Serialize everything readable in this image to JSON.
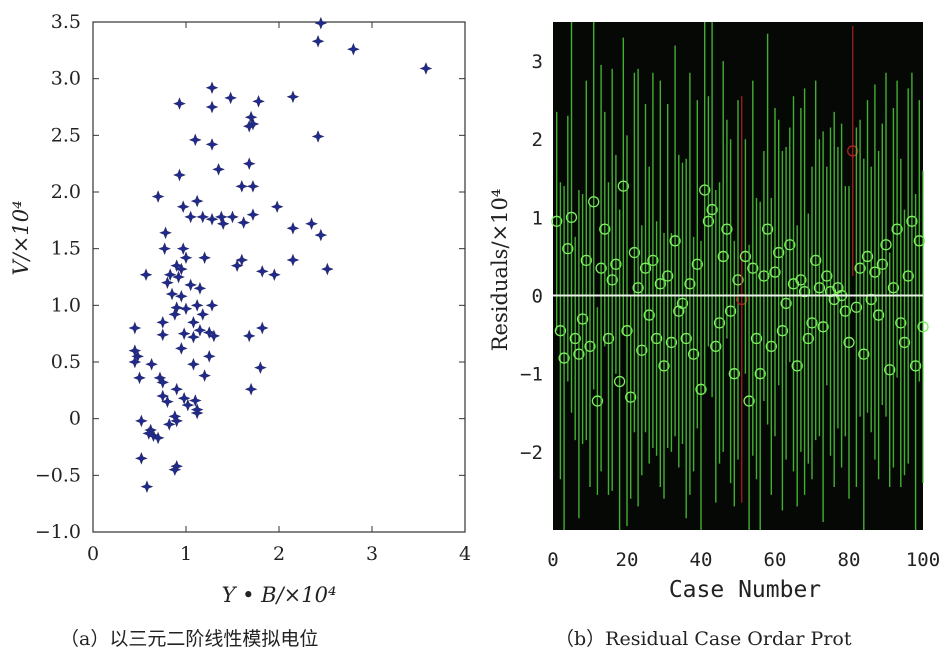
{
  "captions": {
    "a": "（a）以三元二阶线性模拟电位",
    "b": "（b）Residual Case Ordar Prot"
  },
  "chart_data": [
    {
      "type": "scatter",
      "xlabel": "Y • B/×10⁴",
      "ylabel": "V/×10⁴",
      "xlim": [
        0,
        4
      ],
      "ylim": [
        -1.0,
        3.5
      ],
      "xticks": [
        "0",
        "1",
        "2",
        "3",
        "4"
      ],
      "yticks": [
        "3.5",
        "3.0",
        "2.5",
        "2.0",
        "1.5",
        "1.0",
        "0.5",
        "0",
        "−0.5",
        "−1.0"
      ],
      "marker": "star",
      "marker_color": "#1e2a8c",
      "points": [
        [
          2.45,
          3.49
        ],
        [
          2.42,
          3.33
        ],
        [
          2.8,
          3.26
        ],
        [
          3.58,
          3.09
        ],
        [
          1.28,
          2.92
        ],
        [
          1.48,
          2.83
        ],
        [
          2.15,
          2.84
        ],
        [
          0.93,
          2.78
        ],
        [
          1.28,
          2.75
        ],
        [
          1.78,
          2.8
        ],
        [
          1.7,
          2.66
        ],
        [
          1.72,
          2.6
        ],
        [
          1.68,
          2.58
        ],
        [
          2.42,
          2.49
        ],
        [
          1.1,
          2.46
        ],
        [
          1.28,
          2.42
        ],
        [
          1.68,
          2.25
        ],
        [
          1.35,
          2.2
        ],
        [
          0.93,
          2.15
        ],
        [
          1.6,
          2.05
        ],
        [
          1.72,
          2.05
        ],
        [
          0.7,
          1.96
        ],
        [
          1.12,
          1.92
        ],
        [
          0.97,
          1.87
        ],
        [
          1.98,
          1.87
        ],
        [
          1.05,
          1.78
        ],
        [
          1.18,
          1.78
        ],
        [
          1.28,
          1.76
        ],
        [
          1.38,
          1.78
        ],
        [
          1.5,
          1.78
        ],
        [
          1.72,
          1.8
        ],
        [
          1.62,
          1.73
        ],
        [
          1.4,
          1.72
        ],
        [
          2.15,
          1.68
        ],
        [
          2.35,
          1.72
        ],
        [
          2.45,
          1.62
        ],
        [
          0.78,
          1.64
        ],
        [
          0.77,
          1.5
        ],
        [
          0.97,
          1.5
        ],
        [
          1.6,
          1.4
        ],
        [
          1.55,
          1.35
        ],
        [
          2.15,
          1.4
        ],
        [
          1.82,
          1.3
        ],
        [
          1.95,
          1.27
        ],
        [
          2.52,
          1.32
        ],
        [
          0.57,
          1.27
        ],
        [
          0.83,
          1.27
        ],
        [
          0.9,
          1.35
        ],
        [
          0.95,
          1.32
        ],
        [
          0.92,
          1.25
        ],
        [
          0.8,
          1.2
        ],
        [
          1.05,
          1.18
        ],
        [
          1.2,
          1.42
        ],
        [
          1.15,
          1.15
        ],
        [
          0.85,
          1.1
        ],
        [
          0.95,
          1.08
        ],
        [
          0.9,
          0.98
        ],
        [
          1.0,
          0.97
        ],
        [
          1.12,
          1.0
        ],
        [
          1.28,
          1.0
        ],
        [
          1.18,
          0.92
        ],
        [
          0.88,
          0.92
        ],
        [
          0.75,
          0.85
        ],
        [
          1.08,
          0.85
        ],
        [
          1.82,
          0.8
        ],
        [
          0.45,
          0.8
        ],
        [
          0.75,
          0.74
        ],
        [
          0.98,
          0.75
        ],
        [
          1.08,
          0.72
        ],
        [
          1.25,
          0.76
        ],
        [
          1.3,
          0.73
        ],
        [
          1.15,
          0.78
        ],
        [
          1.68,
          0.73
        ],
        [
          0.45,
          0.6
        ],
        [
          0.48,
          0.55
        ],
        [
          0.95,
          0.62
        ],
        [
          1.25,
          0.55
        ],
        [
          0.45,
          0.5
        ],
        [
          0.63,
          0.48
        ],
        [
          1.08,
          0.48
        ],
        [
          1.8,
          0.45
        ],
        [
          0.5,
          0.36
        ],
        [
          0.72,
          0.36
        ],
        [
          0.75,
          0.32
        ],
        [
          1.2,
          0.38
        ],
        [
          0.9,
          0.26
        ],
        [
          1.7,
          0.26
        ],
        [
          0.75,
          0.2
        ],
        [
          0.8,
          0.15
        ],
        [
          0.98,
          0.18
        ],
        [
          1.1,
          0.16
        ],
        [
          1.12,
          0.05
        ],
        [
          1.02,
          0.12
        ],
        [
          0.88,
          0.02
        ],
        [
          0.9,
          -0.02
        ],
        [
          0.82,
          -0.05
        ],
        [
          0.52,
          -0.02
        ],
        [
          0.62,
          -0.1
        ],
        [
          0.65,
          -0.15
        ],
        [
          0.7,
          -0.17
        ],
        [
          0.6,
          -0.13
        ],
        [
          0.52,
          -0.35
        ],
        [
          0.9,
          -0.42
        ],
        [
          0.88,
          -0.45
        ],
        [
          0.58,
          -0.6
        ],
        [
          1.12,
          0.08
        ],
        [
          1.0,
          1.42
        ]
      ]
    },
    {
      "type": "line",
      "xlabel": "Case Number",
      "ylabel": "Residuals/×10⁴",
      "xlim": [
        0,
        100
      ],
      "ylim": [
        -3,
        3.5
      ],
      "xticks": [
        "0",
        "20",
        "40",
        "60",
        "80",
        "100"
      ],
      "yticks": [
        "3",
        "2",
        "1",
        "0",
        "−1",
        "−2"
      ],
      "background": "#050805",
      "series_colors": {
        "intervals": "#4fcc3a",
        "points": "#7ef060",
        "zero_line": "#e8f0e8",
        "outlier": "#b02020"
      },
      "outliers": [
        51,
        81
      ],
      "residuals": [
        0.95,
        -0.45,
        -0.8,
        0.6,
        1.0,
        -0.55,
        -0.75,
        -0.3,
        0.45,
        -0.65,
        1.2,
        -1.35,
        0.35,
        0.85,
        -0.55,
        0.2,
        0.4,
        -1.1,
        1.4,
        -0.45,
        -1.3,
        0.55,
        0.1,
        -0.7,
        0.35,
        -0.25,
        0.45,
        -0.55,
        0.15,
        -0.9,
        0.25,
        -0.6,
        0.7,
        -0.2,
        -0.1,
        -0.55,
        0.15,
        -0.75,
        0.4,
        -1.2,
        1.35,
        0.95,
        1.1,
        -0.65,
        -0.35,
        0.5,
        0.85,
        -0.2,
        -1.0,
        0.2,
        -0.05,
        0.5,
        -1.35,
        0.35,
        -0.55,
        -1.0,
        0.25,
        0.85,
        -0.65,
        0.3,
        0.55,
        -0.45,
        -0.1,
        0.65,
        0.15,
        -0.9,
        0.2,
        0.05,
        -0.55,
        -0.35,
        0.45,
        0.1,
        -0.4,
        0.25,
        0.05,
        -0.05,
        0.1,
        0.0,
        -0.2,
        -0.6,
        1.85,
        -0.15,
        0.35,
        -0.75,
        0.5,
        -0.05,
        0.3,
        -0.25,
        0.4,
        0.65,
        -0.95,
        0.1,
        0.85,
        -0.35,
        -0.6,
        0.25,
        0.95,
        -0.9,
        0.7,
        -0.4
      ],
      "half_widths": [
        1.4,
        1.9,
        2.2,
        1.7,
        2.5,
        1.3,
        2.1,
        1.6,
        2.3,
        1.8,
        2.4,
        1.2,
        2.6,
        1.5,
        2.0,
        2.7,
        1.4,
        2.2,
        1.9,
        2.5,
        1.3,
        2.3,
        2.8,
        1.6,
        2.1,
        1.9,
        2.4,
        1.5,
        2.6,
        1.7,
        2.2,
        1.4,
        2.5,
        2.0,
        1.8,
        2.3,
        2.7,
        1.5,
        2.1,
        1.9,
        2.6,
        1.6,
        2.4,
        2.0,
        1.8,
        2.5,
        1.4,
        2.2,
        1.7,
        2.3,
        2.6,
        1.5,
        2.0,
        2.4,
        1.8,
        2.2,
        1.6,
        2.5,
        1.9,
        2.1,
        1.7,
        2.3,
        2.0,
        1.5,
        2.4,
        1.8,
        2.2,
        2.6,
        1.6,
        2.0,
        2.3,
        1.9,
        2.5,
        1.4,
        2.1,
        2.4,
        1.8,
        2.2,
        1.6,
        2.0,
        1.6,
        2.3,
        1.9,
        2.5,
        2.0,
        1.7,
        2.4,
        2.1,
        1.8,
        2.2,
        1.5,
        2.3,
        1.9,
        2.1,
        1.7,
        2.4,
        1.9,
        2.2,
        1.8,
        2.0
      ]
    }
  ]
}
